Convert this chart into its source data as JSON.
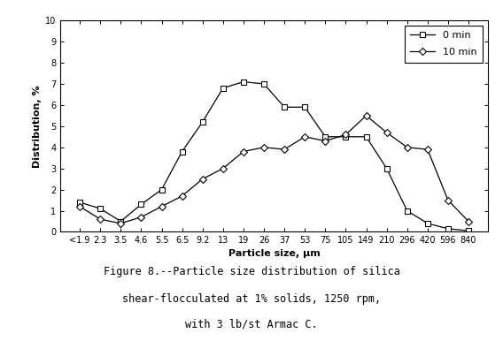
{
  "x_labels": [
    "<1.9",
    "2.3",
    "3.5",
    "4.6",
    "5.5",
    "6.5",
    "9.2",
    "13",
    "19",
    "26",
    "37",
    "53",
    "75",
    "105",
    "149",
    "210",
    "296",
    "420",
    "596",
    "840"
  ],
  "y_0min": [
    1.4,
    1.1,
    0.5,
    1.3,
    2.0,
    3.8,
    5.2,
    6.8,
    7.1,
    7.0,
    5.9,
    5.9,
    4.5,
    4.5,
    4.5,
    3.0,
    1.0,
    0.4,
    0.15,
    0.05
  ],
  "y_10min": [
    1.2,
    0.6,
    0.4,
    0.7,
    1.2,
    1.7,
    2.5,
    3.0,
    3.8,
    4.0,
    3.9,
    4.5,
    4.3,
    4.6,
    5.5,
    4.7,
    4.0,
    3.9,
    1.5,
    0.5
  ],
  "ylabel": "Distribution, %",
  "xlabel": "Particle size, μm",
  "ylim": [
    0,
    10
  ],
  "yticks": [
    0,
    1,
    2,
    3,
    4,
    5,
    6,
    7,
    8,
    9,
    10
  ],
  "legend_0min": "0 min",
  "legend_10min": "10 min",
  "caption_line1": "Figure 8.--Particle size distribution of silica",
  "caption_line2": "shear-flocculated at 1% solids, 1250 rpm,",
  "caption_line3": "with 3 lb/st Armac C.",
  "bg_color": "#ffffff",
  "line_color": "#000000",
  "title_fontsize": 8.5,
  "axis_fontsize": 8,
  "tick_fontsize": 7,
  "legend_fontsize": 8
}
